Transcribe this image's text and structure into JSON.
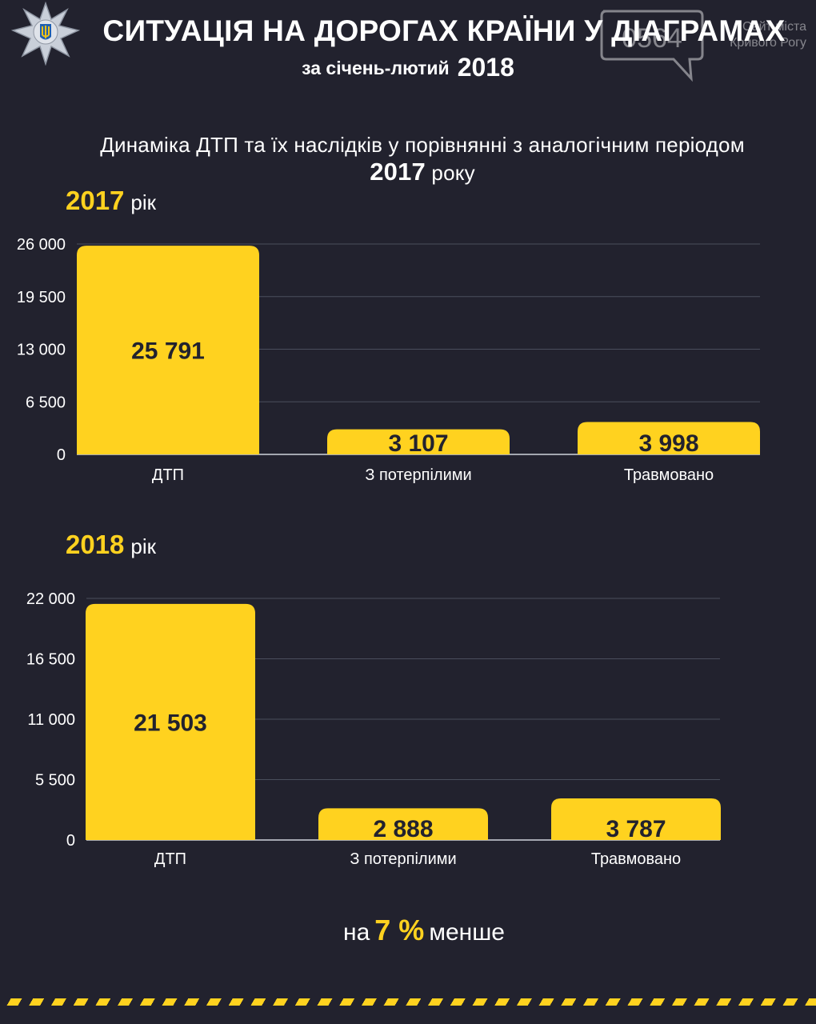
{
  "header": {
    "title": "СИТУАЦІЯ НА ДОРОГАХ КРАЇНИ У ДІАГРАМАХ",
    "subtitle": "за січень-лютий",
    "subtitle_year": "2018"
  },
  "watermark": {
    "logo_text": "0564",
    "site_line1": "Сайт міста",
    "site_line2": "Кривого Рогу"
  },
  "section_heading": {
    "line1": "Динаміка ДТП та їх наслідків  у порівнянні з аналогічним періодом",
    "year": "2017",
    "suffix": "року"
  },
  "charts": [
    {
      "year": "2017",
      "suffix": "рік"
    },
    {
      "year": "2018",
      "suffix": "рік"
    }
  ],
  "chart_data": [
    {
      "type": "bar",
      "title": "2017 рік",
      "categories": [
        "ДТП",
        "З потерпілими",
        "Травмовано"
      ],
      "values": [
        25791,
        3107,
        3998
      ],
      "value_labels": [
        "25 791",
        "3 107",
        "3 998"
      ],
      "ylim": [
        0,
        26000
      ],
      "yticks": [
        0,
        6500,
        13000,
        19500,
        26000
      ],
      "ytick_labels": [
        "0",
        "6 500",
        "13 000",
        "19 500",
        "26 000"
      ],
      "grid": true,
      "bar_color": "#ffd21f"
    },
    {
      "type": "bar",
      "title": "2018 рік",
      "categories": [
        "ДТП",
        "З потерпілими",
        "Травмовано"
      ],
      "values": [
        21503,
        2888,
        3787
      ],
      "value_labels": [
        "21 503",
        "2 888",
        "3 787"
      ],
      "ylim": [
        0,
        22000
      ],
      "yticks": [
        0,
        5500,
        11000,
        16500,
        22000
      ],
      "ytick_labels": [
        "0",
        "5 500",
        "11 000",
        "16 500",
        "22 000"
      ],
      "grid": true,
      "bar_color": "#ffd21f"
    }
  ],
  "footer": {
    "prefix": "на",
    "percent": "7 %",
    "suffix": "менше"
  },
  "colors": {
    "background": "#22222e",
    "accent": "#ffd21f",
    "bar_label": "#22222e"
  },
  "icons": {
    "badge": "police-badge-icon",
    "watermark": "speech-bubble-icon"
  }
}
